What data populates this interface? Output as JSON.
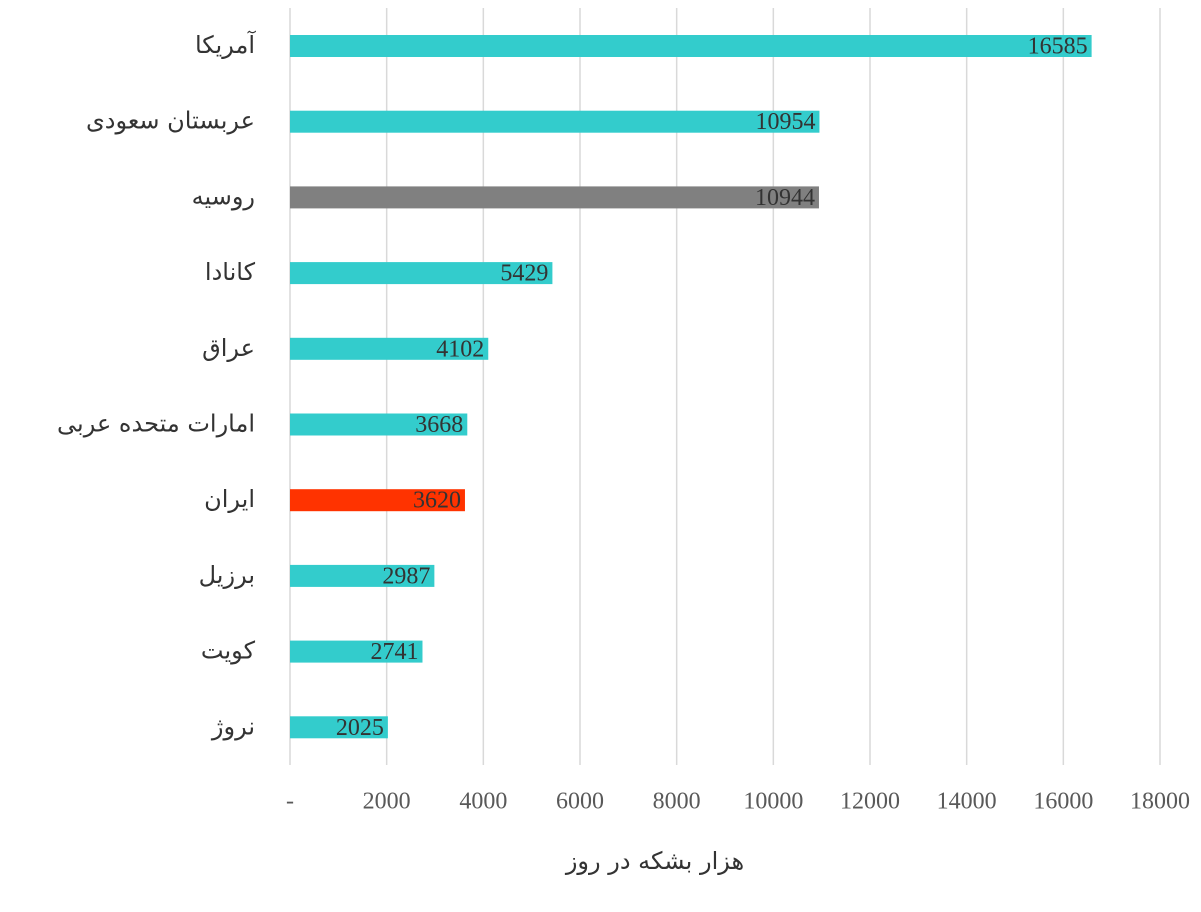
{
  "chart_data": {
    "type": "bar",
    "orientation": "horizontal",
    "x_label": "هزار بشکه در روز",
    "categories": [
      "آمریکا",
      "عربستان سعودی",
      "روسیه",
      "کانادا",
      "عراق",
      "امارات متحده عربی",
      "ایران",
      "برزیل",
      "کویت",
      "نروژ"
    ],
    "values": [
      16585,
      10954,
      10944,
      5429,
      4102,
      3668,
      3620,
      2987,
      2741,
      2025
    ],
    "colors": [
      "#33CCCC",
      "#33CCCC",
      "#808080",
      "#33CCCC",
      "#33CCCC",
      "#33CCCC",
      "#FF3300",
      "#33CCCC",
      "#33CCCC",
      "#33CCCC"
    ],
    "xlim": [
      0,
      18000
    ],
    "xticks": [
      {
        "value": 0,
        "label": "-"
      },
      2000,
      4000,
      6000,
      8000,
      10000,
      12000,
      14000,
      16000,
      18000
    ],
    "grid": true
  }
}
